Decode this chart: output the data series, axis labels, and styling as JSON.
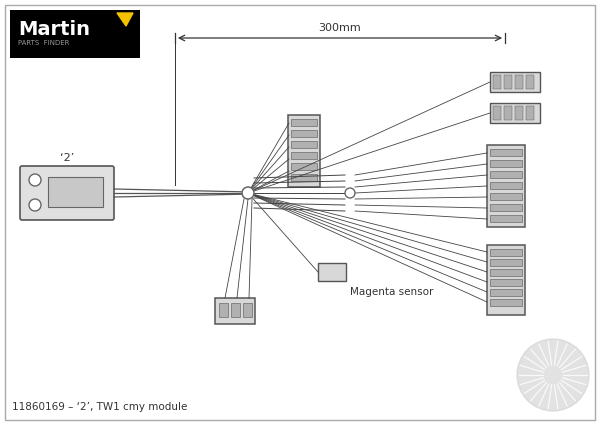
{
  "bg_color": "#ebebeb",
  "border_color": "#aaaaaa",
  "title": "11860169 – ‘2’, TW1 cmy module",
  "measurement_label": "300mm",
  "magenta_label": "Magenta sensor",
  "label_2": "‘2’",
  "wire_color": "#444444",
  "line_color": "#333333",
  "conn_face": "#d8d8d8",
  "conn_edge": "#555555",
  "pin_face": "#b0b0b0"
}
